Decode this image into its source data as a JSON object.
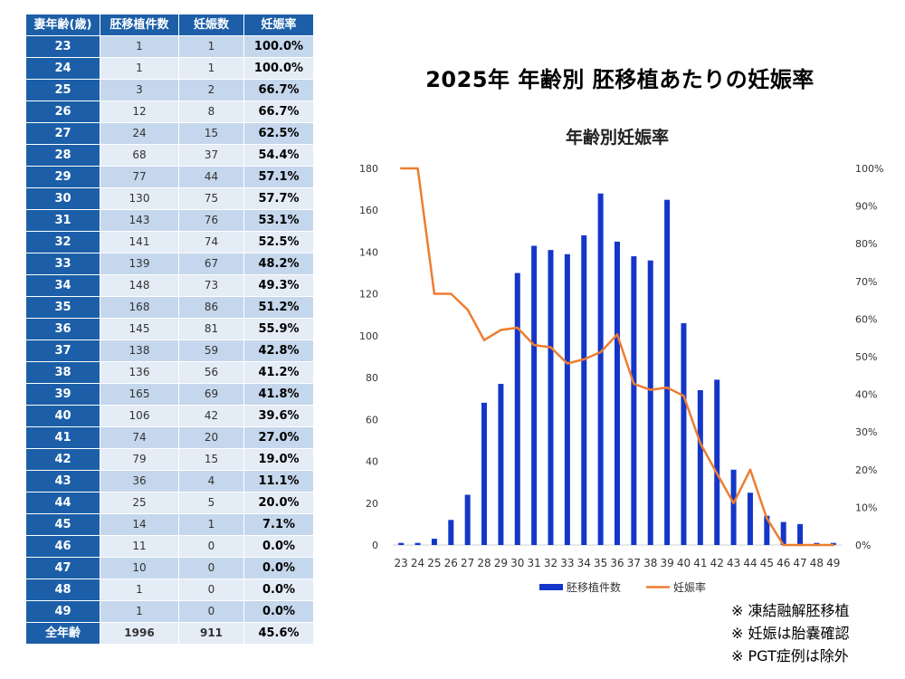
{
  "page_title": "2025年 年齢別 胚移植あたりの妊娠率",
  "table": {
    "headers": [
      "妻年齢(歳)",
      "胚移植件数",
      "妊娠数",
      "妊娠率"
    ],
    "rows": [
      [
        "23",
        "1",
        "1",
        "100.0%"
      ],
      [
        "24",
        "1",
        "1",
        "100.0%"
      ],
      [
        "25",
        "3",
        "2",
        "66.7%"
      ],
      [
        "26",
        "12",
        "8",
        "66.7%"
      ],
      [
        "27",
        "24",
        "15",
        "62.5%"
      ],
      [
        "28",
        "68",
        "37",
        "54.4%"
      ],
      [
        "29",
        "77",
        "44",
        "57.1%"
      ],
      [
        "30",
        "130",
        "75",
        "57.7%"
      ],
      [
        "31",
        "143",
        "76",
        "53.1%"
      ],
      [
        "32",
        "141",
        "74",
        "52.5%"
      ],
      [
        "33",
        "139",
        "67",
        "48.2%"
      ],
      [
        "34",
        "148",
        "73",
        "49.3%"
      ],
      [
        "35",
        "168",
        "86",
        "51.2%"
      ],
      [
        "36",
        "145",
        "81",
        "55.9%"
      ],
      [
        "37",
        "138",
        "59",
        "42.8%"
      ],
      [
        "38",
        "136",
        "56",
        "41.2%"
      ],
      [
        "39",
        "165",
        "69",
        "41.8%"
      ],
      [
        "40",
        "106",
        "42",
        "39.6%"
      ],
      [
        "41",
        "74",
        "20",
        "27.0%"
      ],
      [
        "42",
        "79",
        "15",
        "19.0%"
      ],
      [
        "43",
        "36",
        "4",
        "11.1%"
      ],
      [
        "44",
        "25",
        "5",
        "20.0%"
      ],
      [
        "45",
        "14",
        "1",
        "7.1%"
      ],
      [
        "46",
        "11",
        "0",
        "0.0%"
      ],
      [
        "47",
        "10",
        "0",
        "0.0%"
      ],
      [
        "48",
        "1",
        "0",
        "0.0%"
      ],
      [
        "49",
        "1",
        "0",
        "0.0%"
      ]
    ],
    "total": [
      "全年齢",
      "1996",
      "911",
      "45.6%"
    ]
  },
  "chart_data": {
    "type": "bar",
    "title": "年齢別妊娠率",
    "categories": [
      "23",
      "24",
      "25",
      "26",
      "27",
      "28",
      "29",
      "30",
      "31",
      "32",
      "33",
      "34",
      "35",
      "36",
      "37",
      "38",
      "39",
      "40",
      "41",
      "42",
      "43",
      "44",
      "45",
      "46",
      "47",
      "48",
      "49"
    ],
    "series": [
      {
        "name": "胚移植件数",
        "type": "bar",
        "axis": "left",
        "color": "#1436c8",
        "values": [
          1,
          1,
          3,
          12,
          24,
          68,
          77,
          130,
          143,
          141,
          139,
          148,
          168,
          145,
          138,
          136,
          165,
          106,
          74,
          79,
          36,
          25,
          14,
          11,
          10,
          1,
          1
        ]
      },
      {
        "name": "妊娠率",
        "type": "line",
        "axis": "right",
        "color": "#ed7d31",
        "values": [
          100.0,
          100.0,
          66.7,
          66.7,
          62.5,
          54.4,
          57.1,
          57.7,
          53.1,
          52.5,
          48.2,
          49.3,
          51.2,
          55.9,
          42.8,
          41.2,
          41.8,
          39.6,
          27.0,
          19.0,
          11.1,
          20.0,
          7.1,
          0.0,
          0.0,
          0.0,
          0.0
        ]
      }
    ],
    "y_left": {
      "min": 0,
      "max": 180,
      "ticks": [
        "0",
        "20",
        "40",
        "60",
        "80",
        "100",
        "120",
        "140",
        "160",
        "180"
      ]
    },
    "y_right": {
      "min": 0,
      "max": 100,
      "ticks": [
        "0%",
        "10%",
        "20%",
        "30%",
        "40%",
        "50%",
        "60%",
        "70%",
        "80%",
        "90%",
        "100%"
      ]
    },
    "legend_position": "bottom"
  },
  "notes": [
    "※ 凍結融解胚移植",
    "※ 妊娠は胎嚢確認",
    "※ PGT症例は除外"
  ]
}
